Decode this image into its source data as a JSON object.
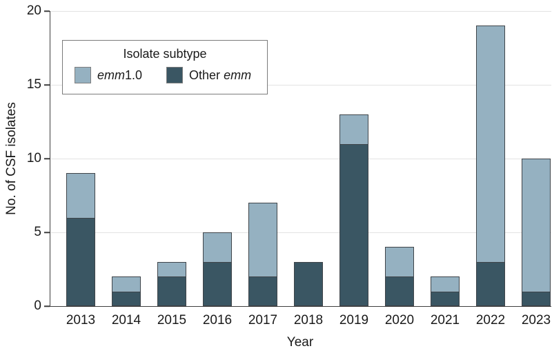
{
  "figure": {
    "ylabel": "No. of CSF isolates",
    "xlabel": "Year"
  },
  "legend": {
    "title": "Isolate subtype",
    "items": [
      {
        "pre": "",
        "italic": "emm",
        "post": "1.0",
        "color": "#95b1c1"
      },
      {
        "pre": "Other ",
        "italic": "emm",
        "post": "",
        "color": "#3a5663"
      }
    ]
  },
  "colors": {
    "emm1_light": "#95b1c1",
    "other_emm_dark": "#3a5663",
    "bar_border": "#3f4449",
    "gridline": "#e3e3e3",
    "axis": "#3d3d3d",
    "text": "#1a1a1a",
    "legend_border": "#7a7a7a"
  },
  "chart_data": {
    "type": "bar",
    "stacked": true,
    "title": "",
    "xlabel": "Year",
    "ylabel": "No. of CSF isolates",
    "categories": [
      "2013",
      "2014",
      "2015",
      "2016",
      "2017",
      "2018",
      "2019",
      "2020",
      "2021",
      "2022",
      "2023"
    ],
    "series": [
      {
        "name": "Other emm",
        "color": "#3a5663",
        "values": [
          6,
          1,
          2,
          3,
          2,
          3,
          11,
          2,
          1,
          3,
          1
        ]
      },
      {
        "name": "emm1.0",
        "color": "#95b1c1",
        "values": [
          3,
          1,
          1,
          2,
          5,
          0,
          2,
          2,
          1,
          16,
          9
        ]
      }
    ],
    "totals": [
      9,
      2,
      3,
      5,
      7,
      3,
      13,
      4,
      2,
      19,
      10
    ],
    "ylim": [
      0,
      20
    ],
    "yticks": [
      0,
      5,
      10,
      15,
      20
    ],
    "grid": true,
    "legend_position": "upper-left"
  }
}
